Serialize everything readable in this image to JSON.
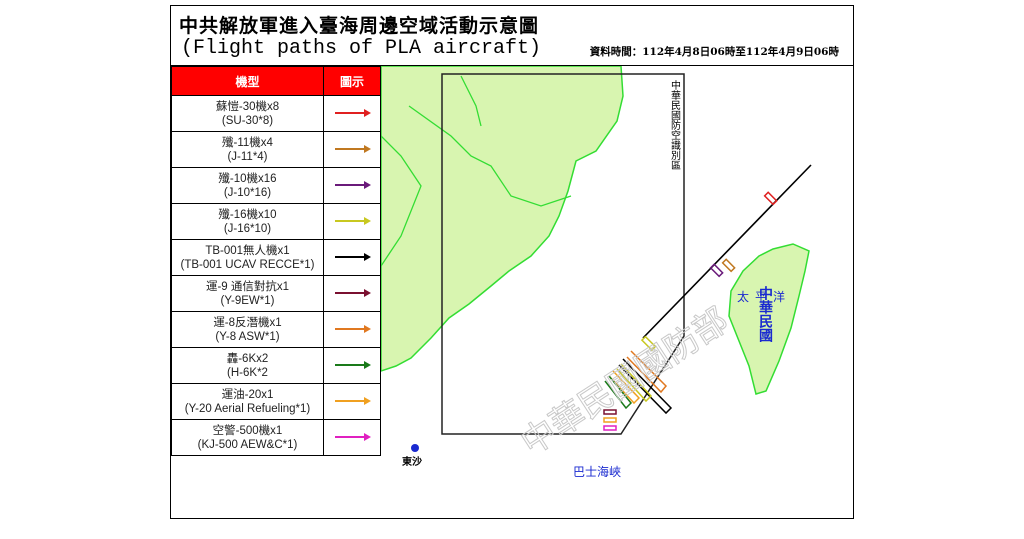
{
  "header": {
    "title_zh": "中共解放軍進入臺海周邊空域活動示意圖",
    "title_en": "(Flight paths of PLA aircraft)",
    "data_time": "資料時間：112年4月8日06時至112年4月9日06時"
  },
  "legend": {
    "col_type": "機型",
    "col_symbol": "圖示",
    "rows": [
      {
        "zh": "蘇愷-30機x8",
        "en": "(SU-30*8)",
        "color": "#e02020"
      },
      {
        "zh": "殲-11機x4",
        "en": "(J-11*4)",
        "color": "#c07820"
      },
      {
        "zh": "殲-10機x16",
        "en": "(J-10*16)",
        "color": "#6a1a7a"
      },
      {
        "zh": "殲-16機x10",
        "en": "(J-16*10)",
        "color": "#c8c820"
      },
      {
        "zh": "TB-001無人機x1",
        "en": "(TB-001 UCAV RECCE*1)",
        "color": "#000000"
      },
      {
        "zh": "運-9 通信對抗x1",
        "en": "(Y-9EW*1)",
        "color": "#7a1030"
      },
      {
        "zh": "運-8反潛機x1",
        "en": "(Y-8 ASW*1)",
        "color": "#e07820"
      },
      {
        "zh": "轟-6Kx2",
        "en": "(H-6K*2",
        "color": "#1a7a1a"
      },
      {
        "zh": "運油-20x1",
        "en": "(Y-20 Aerial Refueling*1)",
        "color": "#f0a020"
      },
      {
        "zh": "空警-500機x1",
        "en": "(KJ-500 AEW&C*1)",
        "color": "#e020c0"
      }
    ]
  },
  "map": {
    "adiz_label": "中華民國防空識別區",
    "taiwan_label": "中華民國",
    "pacific_label": "太平洋",
    "bashi_label": "巴士海峽",
    "dongsha_label": "東沙",
    "watermark": "中華民國國防部",
    "land_color": "#d8f5b0",
    "coast_color": "#33dd33"
  }
}
